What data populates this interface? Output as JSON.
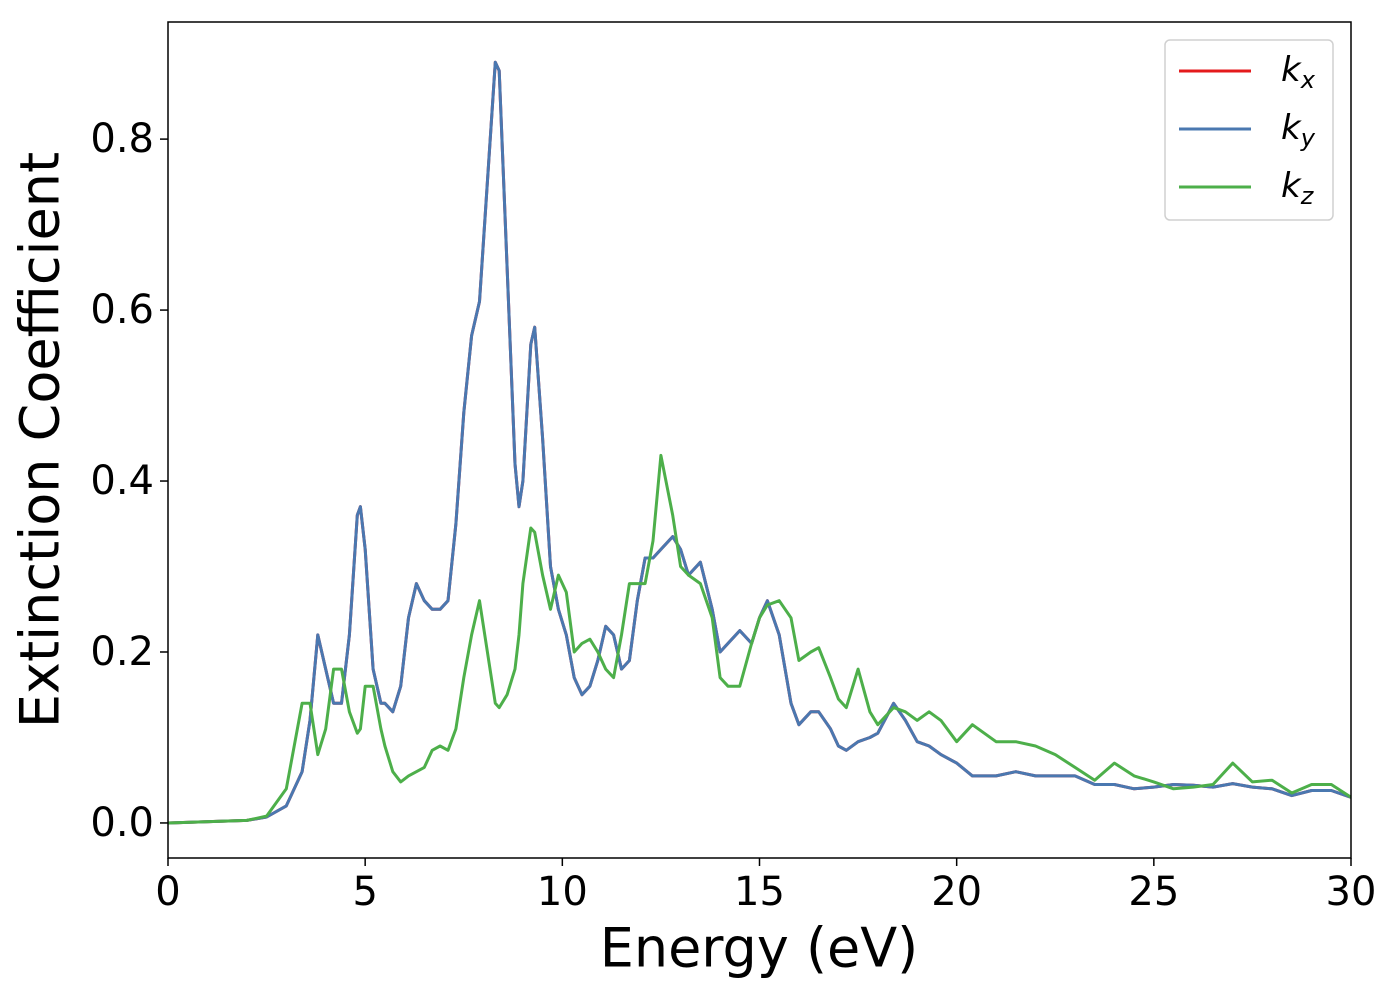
{
  "chart_data": {
    "type": "line",
    "xlabel": "Energy (eV)",
    "ylabel": "Extinction Coefficient",
    "x": [
      0,
      2,
      2.5,
      3,
      3.4,
      3.6,
      3.8,
      4.0,
      4.2,
      4.4,
      4.6,
      4.8,
      4.88,
      5.0,
      5.2,
      5.4,
      5.5,
      5.7,
      5.9,
      6.1,
      6.3,
      6.5,
      6.7,
      6.9,
      7.1,
      7.3,
      7.5,
      7.7,
      7.9,
      8.1,
      8.3,
      8.4,
      8.6,
      8.8,
      8.9,
      9.0,
      9.2,
      9.3,
      9.5,
      9.7,
      9.9,
      10.1,
      10.3,
      10.5,
      10.7,
      10.9,
      11.1,
      11.3,
      11.5,
      11.7,
      11.9,
      12.1,
      12.3,
      12.5,
      12.8,
      13.0,
      13.2,
      13.5,
      13.8,
      14.0,
      14.2,
      14.5,
      14.8,
      15.0,
      15.2,
      15.5,
      15.8,
      16.0,
      16.3,
      16.5,
      16.8,
      17.0,
      17.2,
      17.5,
      17.8,
      18.0,
      18.4,
      18.7,
      19.0,
      19.3,
      19.6,
      20.0,
      20.4,
      21.0,
      21.5,
      22.0,
      22.5,
      23.0,
      23.5,
      24.0,
      24.5,
      25.0,
      25.5,
      26.0,
      26.5,
      27.0,
      27.5,
      28.0,
      28.5,
      29.0,
      29.5,
      30
    ],
    "series": [
      {
        "name": "kx",
        "color": "#e41a1c",
        "values": [
          0,
          0.003,
          0.007,
          0.02,
          0.06,
          0.12,
          0.22,
          0.18,
          0.14,
          0.14,
          0.22,
          0.36,
          0.37,
          0.32,
          0.18,
          0.14,
          0.14,
          0.13,
          0.16,
          0.24,
          0.28,
          0.26,
          0.25,
          0.25,
          0.26,
          0.35,
          0.48,
          0.57,
          0.61,
          0.75,
          0.89,
          0.88,
          0.65,
          0.42,
          0.37,
          0.4,
          0.56,
          0.58,
          0.45,
          0.3,
          0.25,
          0.22,
          0.17,
          0.15,
          0.16,
          0.19,
          0.23,
          0.22,
          0.18,
          0.19,
          0.26,
          0.31,
          0.31,
          0.32,
          0.335,
          0.32,
          0.29,
          0.305,
          0.25,
          0.2,
          0.21,
          0.225,
          0.21,
          0.24,
          0.26,
          0.22,
          0.14,
          0.115,
          0.13,
          0.13,
          0.11,
          0.09,
          0.085,
          0.095,
          0.1,
          0.105,
          0.14,
          0.12,
          0.095,
          0.09,
          0.08,
          0.07,
          0.055,
          0.055,
          0.06,
          0.055,
          0.055,
          0.055,
          0.045,
          0.045,
          0.04,
          0.042,
          0.045,
          0.044,
          0.042,
          0.046,
          0.042,
          0.04,
          0.032,
          0.038,
          0.038,
          0.03
        ]
      },
      {
        "name": "ky",
        "color": "#4a78b0",
        "values": [
          0,
          0.003,
          0.007,
          0.02,
          0.06,
          0.12,
          0.22,
          0.18,
          0.14,
          0.14,
          0.22,
          0.36,
          0.37,
          0.32,
          0.18,
          0.14,
          0.14,
          0.13,
          0.16,
          0.24,
          0.28,
          0.26,
          0.25,
          0.25,
          0.26,
          0.35,
          0.48,
          0.57,
          0.61,
          0.75,
          0.89,
          0.88,
          0.65,
          0.42,
          0.37,
          0.4,
          0.56,
          0.58,
          0.45,
          0.3,
          0.25,
          0.22,
          0.17,
          0.15,
          0.16,
          0.19,
          0.23,
          0.22,
          0.18,
          0.19,
          0.26,
          0.31,
          0.31,
          0.32,
          0.335,
          0.32,
          0.29,
          0.305,
          0.25,
          0.2,
          0.21,
          0.225,
          0.21,
          0.24,
          0.26,
          0.22,
          0.14,
          0.115,
          0.13,
          0.13,
          0.11,
          0.09,
          0.085,
          0.095,
          0.1,
          0.105,
          0.14,
          0.12,
          0.095,
          0.09,
          0.08,
          0.07,
          0.055,
          0.055,
          0.06,
          0.055,
          0.055,
          0.055,
          0.045,
          0.045,
          0.04,
          0.042,
          0.045,
          0.044,
          0.042,
          0.046,
          0.042,
          0.04,
          0.032,
          0.038,
          0.038,
          0.03
        ]
      },
      {
        "name": "kz",
        "color": "#4daf4a",
        "values": [
          0,
          0.003,
          0.008,
          0.04,
          0.14,
          0.14,
          0.08,
          0.11,
          0.18,
          0.18,
          0.13,
          0.105,
          0.11,
          0.16,
          0.16,
          0.11,
          0.09,
          0.06,
          0.048,
          0.055,
          0.06,
          0.065,
          0.085,
          0.09,
          0.085,
          0.11,
          0.17,
          0.22,
          0.26,
          0.2,
          0.14,
          0.135,
          0.15,
          0.18,
          0.22,
          0.28,
          0.345,
          0.34,
          0.29,
          0.25,
          0.29,
          0.27,
          0.2,
          0.21,
          0.215,
          0.2,
          0.18,
          0.17,
          0.22,
          0.28,
          0.28,
          0.28,
          0.33,
          0.43,
          0.36,
          0.3,
          0.29,
          0.28,
          0.24,
          0.17,
          0.16,
          0.16,
          0.21,
          0.24,
          0.255,
          0.26,
          0.24,
          0.19,
          0.2,
          0.205,
          0.17,
          0.145,
          0.135,
          0.18,
          0.13,
          0.115,
          0.135,
          0.13,
          0.12,
          0.13,
          0.12,
          0.095,
          0.115,
          0.095,
          0.095,
          0.09,
          0.08,
          0.065,
          0.05,
          0.07,
          0.055,
          0.048,
          0.04,
          0.042,
          0.045,
          0.07,
          0.048,
          0.05,
          0.035,
          0.045,
          0.045,
          0.03
        ]
      }
    ],
    "xlim": [
      0,
      30
    ],
    "xticks": [
      0,
      5,
      10,
      15,
      20,
      25,
      30
    ],
    "ylim": [
      -0.041,
      0.937
    ],
    "yticks": [
      {
        "value": 0,
        "label": "0.0"
      },
      0.2,
      0.4,
      0.6,
      0.8
    ],
    "legend": "upper right"
  }
}
